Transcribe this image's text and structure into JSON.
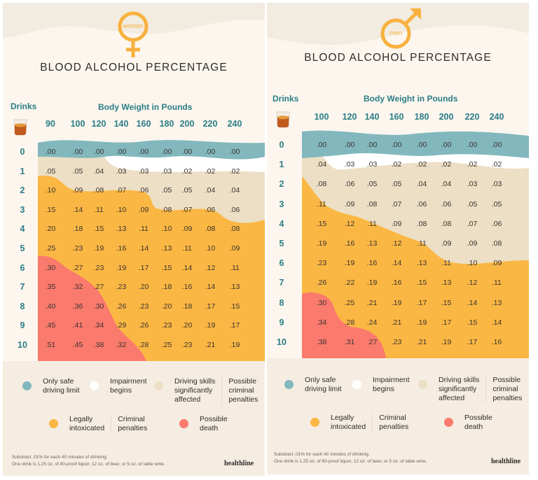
{
  "colors": {
    "safe": "#82b8bd",
    "impairment": "#ffffff",
    "driving": "#ecdfc5",
    "intoxicated": "#fbb743",
    "death": "#fa7a6d",
    "teal_text": "#2b7d86",
    "symbol": "#f7b13e"
  },
  "legend": {
    "safe": "Only safe\ndriving limit",
    "impairment": "Impairment\nbegins",
    "driving": "Driving skills\nsignificantly\naffected",
    "driving_penalty": "Possible\ncriminal\npenalties",
    "intoxicated": "Legally\nintoxicated",
    "intoxicated_penalty": "Criminal\npenalties",
    "death": "Possible\ndeath"
  },
  "footnote_line1": "Substract .01% for each 40 minutes of drinking.",
  "footnote_line2": "One drink is 1.25 oz. of 80-proof liquor, 12 oz. of beer, or 5 oz. of table wine.",
  "brand": "healthline",
  "title": "BLOOD ALCOHOL PERCENTAGE",
  "drinks_label": "Drinks",
  "weight_label": "Body Weight in Pounds",
  "drinks": [
    "0",
    "1",
    "2",
    "3",
    "4",
    "5",
    "6",
    "7",
    "8",
    "9",
    "10"
  ],
  "chart_data": [
    {
      "type": "table",
      "title": "BLOOD ALCOHOL PERCENTAGE",
      "group": "women",
      "xlabel": "Body Weight in Pounds",
      "ylabel": "Drinks",
      "weights": [
        "90",
        "100",
        "120",
        "140",
        "160",
        "180",
        "200",
        "220",
        "240"
      ],
      "values": [
        [
          ".00",
          ".00",
          ".00",
          ".00",
          ".00",
          ".00",
          ".00",
          ".00",
          ".00"
        ],
        [
          ".05",
          ".05",
          ".04",
          ".03",
          ".03",
          ".03",
          ".02",
          ".02",
          ".02"
        ],
        [
          ".10",
          ".09",
          ".08",
          ".07",
          ".06",
          ".05",
          ".05",
          ".04",
          ".04"
        ],
        [
          ".15",
          ".14",
          ".11",
          ".10",
          ".09",
          ".08",
          ".07",
          ".06",
          ".06"
        ],
        [
          ".20",
          ".18",
          ".15",
          ".13",
          ".11",
          ".10",
          ".09",
          ".08",
          ".08"
        ],
        [
          ".25",
          ".23",
          ".19",
          ".16",
          ".14",
          ".13",
          ".11",
          ".10",
          ".09"
        ],
        [
          ".30",
          ".27",
          ".23",
          ".19",
          ".17",
          ".15",
          ".14",
          ".12",
          ".11"
        ],
        [
          ".35",
          ".32",
          ".27",
          ".23",
          ".20",
          ".18",
          ".16",
          ".14",
          ".13"
        ],
        [
          ".40",
          ".36",
          ".30",
          ".26",
          ".23",
          ".20",
          ".18",
          ".17",
          ".15"
        ],
        [
          ".45",
          ".41",
          ".34",
          ".29",
          ".26",
          ".23",
          ".20",
          ".19",
          ".17"
        ],
        [
          ".51",
          ".45",
          ".38",
          ".32",
          ".28",
          ".25",
          ".23",
          ".21",
          ".19"
        ]
      ]
    },
    {
      "type": "table",
      "title": "BLOOD ALCOHOL PERCENTAGE",
      "group": "men",
      "xlabel": "Body Weight in Pounds",
      "ylabel": "Drinks",
      "weights": [
        "100",
        "120",
        "140",
        "160",
        "180",
        "200",
        "220",
        "240"
      ],
      "values": [
        [
          ".00",
          ".00",
          ".00",
          ".00",
          ".00",
          ".00",
          ".00",
          ".00"
        ],
        [
          ".04",
          ".03",
          ".03",
          ".02",
          ".02",
          ".02",
          ".02",
          ".02"
        ],
        [
          ".08",
          ".06",
          ".05",
          ".05",
          ".04",
          ".04",
          ".03",
          ".03"
        ],
        [
          ".11",
          ".09",
          ".08",
          ".07",
          ".06",
          ".06",
          ".05",
          ".05"
        ],
        [
          ".15",
          ".12",
          ".11",
          ".09",
          ".08",
          ".08",
          ".07",
          ".06"
        ],
        [
          ".19",
          ".16",
          ".13",
          ".12",
          ".11",
          ".09",
          ".09",
          ".08"
        ],
        [
          ".23",
          ".19",
          ".16",
          ".14",
          ".13",
          ".11",
          ".10",
          ".09"
        ],
        [
          ".26",
          ".22",
          ".19",
          ".16",
          ".15",
          ".13",
          ".12",
          ".11"
        ],
        [
          ".30",
          ".25",
          ".21",
          ".19",
          ".17",
          ".15",
          ".14",
          ".13"
        ],
        [
          ".34",
          ".28",
          ".24",
          ".21",
          ".19",
          ".17",
          ".15",
          ".14"
        ],
        [
          ".38",
          ".31",
          ".27",
          ".23",
          ".21",
          ".19",
          ".17",
          ".16"
        ]
      ]
    }
  ],
  "panels": {
    "women": {
      "symbol_label": "women"
    },
    "men": {
      "symbol_label": "men"
    }
  }
}
